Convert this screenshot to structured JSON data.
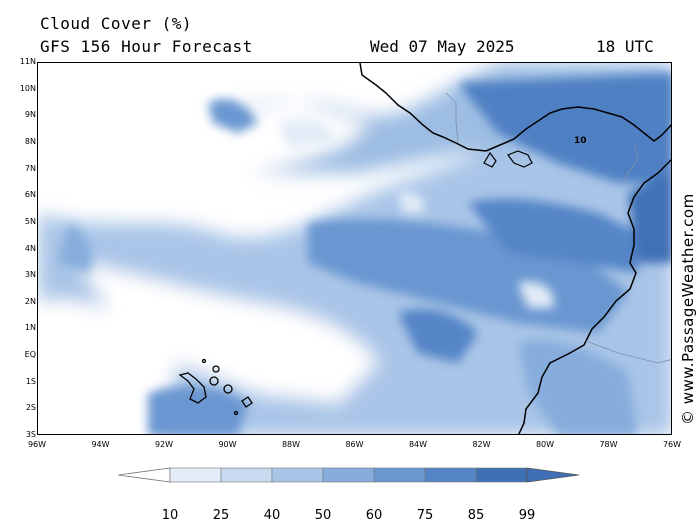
{
  "header": {
    "title": "Cloud Cover (%)",
    "model": "GFS 156 Hour Forecast",
    "date": "Wed 07 May 2025",
    "time": "18 UTC"
  },
  "credit": "© www.PassageWeather.com",
  "map": {
    "lat_labels": [
      "11N",
      "10N",
      "9N",
      "8N",
      "7N",
      "6N",
      "5N",
      "4N",
      "3N",
      "2N",
      "1N",
      "EQ",
      "1S",
      "2S",
      "3S"
    ],
    "lon_labels": [
      "96W",
      "94W",
      "92W",
      "90W",
      "88W",
      "86W",
      "84W",
      "82W",
      "80W",
      "78W",
      "76W"
    ],
    "lat_range": [
      -3,
      11
    ],
    "lon_range": [
      -96,
      -76
    ],
    "annotation": "10"
  },
  "legend": {
    "values": [
      "10",
      "25",
      "40",
      "50",
      "60",
      "75",
      "85",
      "99"
    ],
    "colors": [
      "#ffffff",
      "#e3ecf7",
      "#c8daf0",
      "#a9c5e7",
      "#86addc",
      "#6b97d1",
      "#5585c7",
      "#3f6fb5"
    ]
  }
}
